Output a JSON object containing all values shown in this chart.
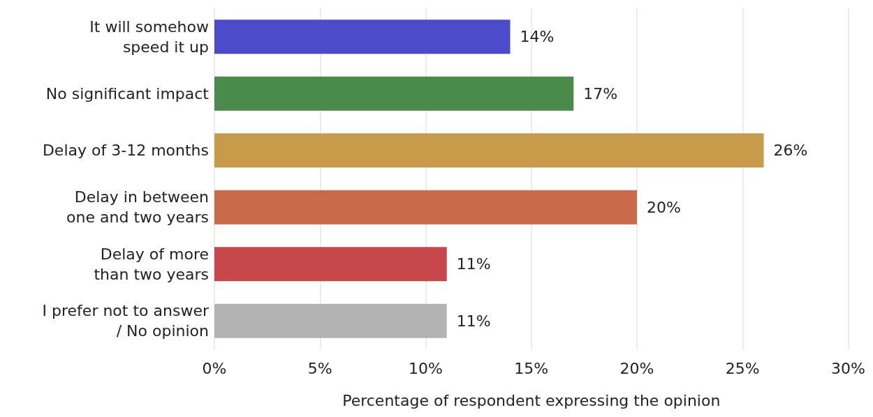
{
  "chart_data": {
    "type": "bar",
    "orientation": "horizontal",
    "xlabel": "Percentage of respondent expressing the opinion",
    "categories": [
      "It will somehow\nspeed it up",
      "No significant impact",
      "Delay of 3-12 months",
      "Delay in between\none and two years",
      "Delay of more\nthan two years",
      "I prefer not to answer\n/ No opinion"
    ],
    "values": [
      14,
      17,
      26,
      20,
      11,
      11
    ],
    "colors": [
      "#4b4bcc",
      "#4a8a4a",
      "#c89b4a",
      "#c96a4a",
      "#c8474a",
      "#b3b3b3"
    ],
    "value_labels": [
      "14%",
      "17%",
      "26%",
      "20%",
      "11%",
      "11%"
    ],
    "xlim": [
      0,
      30
    ],
    "xticks": [
      {
        "value": 0,
        "label": "0%"
      },
      {
        "value": 5,
        "label": "5%"
      },
      {
        "value": 10,
        "label": "10%"
      },
      {
        "value": 15,
        "label": "15%"
      },
      {
        "value": 20,
        "label": "20%"
      },
      {
        "value": 25,
        "label": "25%"
      },
      {
        "value": 30,
        "label": "30%"
      }
    ],
    "grid": "x"
  }
}
